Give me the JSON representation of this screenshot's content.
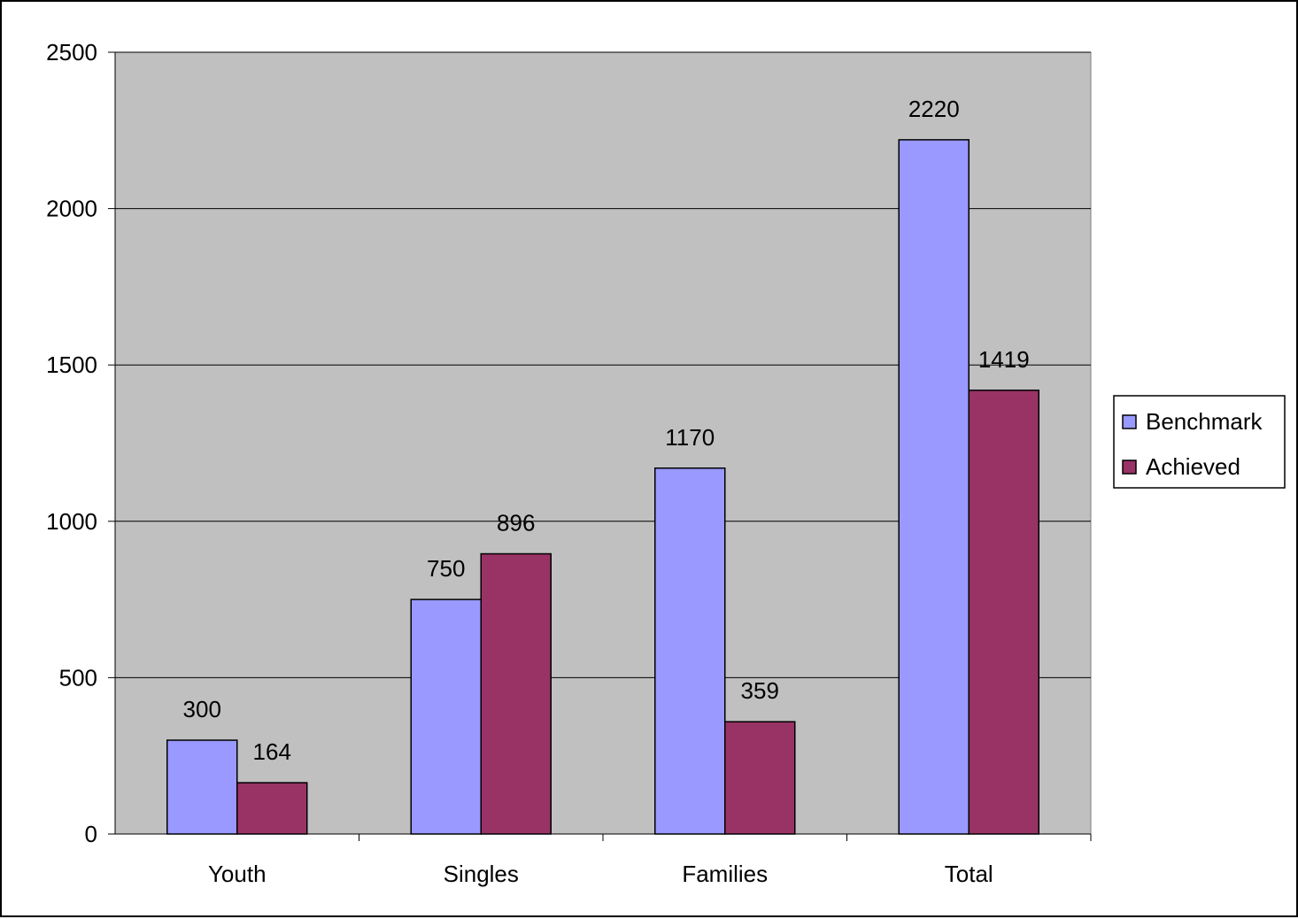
{
  "chart_data": {
    "type": "bar",
    "categories": [
      "Youth",
      "Singles",
      "Families",
      "Total"
    ],
    "series": [
      {
        "name": "Benchmark",
        "values": [
          300,
          750,
          1170,
          2220
        ],
        "color": "#9999ff"
      },
      {
        "name": "Achieved",
        "values": [
          164,
          896,
          359,
          1419
        ],
        "color": "#993366"
      }
    ],
    "ylim": [
      0,
      2500
    ],
    "yticks": [
      "0",
      "500",
      "1000",
      "1500",
      "2000",
      "2500"
    ],
    "plot_background": "#c0c0c0",
    "gridlines": true,
    "legend_position": "right"
  }
}
